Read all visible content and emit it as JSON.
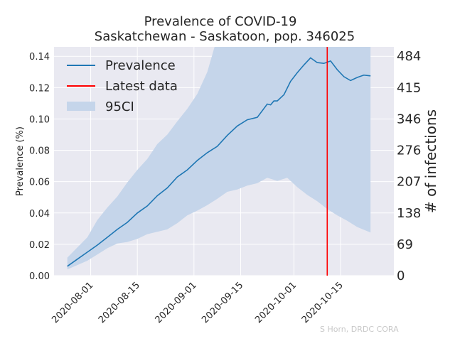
{
  "chart_data": {
    "type": "line",
    "title_line1": "Prevalence of COVID-19",
    "title_line2": "Saskatchewan - Saskatoon, pop. 346025",
    "ylabel": "Prevalence (%)",
    "ylabel_right": "# of infections",
    "xlabel": "",
    "x_range": [
      "2020-07-21",
      "2020-10-31"
    ],
    "ylim": [
      0,
      0.146
    ],
    "yticks": [
      0.0,
      0.02,
      0.04,
      0.06,
      0.08,
      0.1,
      0.12,
      0.14
    ],
    "ytick_labels": [
      "0.00",
      "0.02",
      "0.04",
      "0.06",
      "0.08",
      "0.10",
      "0.12",
      "0.14"
    ],
    "right_yticks": [
      0,
      69,
      138,
      207,
      276,
      346,
      415,
      484
    ],
    "xticks": [
      "2020-08-01",
      "2020-08-15",
      "2020-09-01",
      "2020-09-15",
      "2020-10-01",
      "2020-10-15"
    ],
    "grid": true,
    "legend_position": "upper-left",
    "latest_data_date": "2020-10-11",
    "series": [
      {
        "name": "Prevalence",
        "color": "#1f77b4",
        "dates": [
          "2020-07-25",
          "2020-07-28",
          "2020-07-31",
          "2020-08-03",
          "2020-08-06",
          "2020-08-09",
          "2020-08-12",
          "2020-08-15",
          "2020-08-18",
          "2020-08-21",
          "2020-08-24",
          "2020-08-27",
          "2020-08-30",
          "2020-09-02",
          "2020-09-05",
          "2020-09-08",
          "2020-09-11",
          "2020-09-14",
          "2020-09-17",
          "2020-09-20",
          "2020-09-23",
          "2020-09-24",
          "2020-09-25",
          "2020-09-26",
          "2020-09-28",
          "2020-09-30",
          "2020-10-02",
          "2020-10-04",
          "2020-10-06",
          "2020-10-08",
          "2020-10-10",
          "2020-10-12",
          "2020-10-14",
          "2020-10-16",
          "2020-10-18",
          "2020-10-20",
          "2020-10-22",
          "2020-10-24"
        ],
        "values": [
          0.006,
          0.0105,
          0.015,
          0.0195,
          0.0245,
          0.0295,
          0.034,
          0.04,
          0.0445,
          0.051,
          0.056,
          0.063,
          0.0675,
          0.0735,
          0.0785,
          0.0825,
          0.0895,
          0.0955,
          0.0995,
          0.101,
          0.1095,
          0.109,
          0.1115,
          0.1115,
          0.1155,
          0.124,
          0.1295,
          0.1345,
          0.139,
          0.136,
          0.1355,
          0.137,
          0.1315,
          0.127,
          0.1245,
          0.1265,
          0.128,
          0.1275
        ]
      },
      {
        "name": "95CI",
        "color": "#c5d5ea",
        "dates": [
          "2020-07-25",
          "2020-07-31",
          "2020-08-03",
          "2020-08-06",
          "2020-08-09",
          "2020-08-12",
          "2020-08-15",
          "2020-08-18",
          "2020-08-21",
          "2020-08-24",
          "2020-08-27",
          "2020-08-30",
          "2020-09-02",
          "2020-09-05",
          "2020-09-08",
          "2020-09-11",
          "2020-09-14",
          "2020-09-17",
          "2020-09-20",
          "2020-09-23",
          "2020-09-26",
          "2020-09-29",
          "2020-10-02",
          "2020-10-05",
          "2020-10-08",
          "2020-10-11",
          "2020-10-14",
          "2020-10-17",
          "2020-10-20",
          "2020-10-24"
        ],
        "lower": [
          0.004,
          0.0095,
          0.0135,
          0.0175,
          0.0205,
          0.0215,
          0.0235,
          0.0265,
          0.028,
          0.0295,
          0.0335,
          0.0385,
          0.0415,
          0.045,
          0.049,
          0.0535,
          0.055,
          0.0575,
          0.059,
          0.0625,
          0.0605,
          0.0625,
          0.0565,
          0.0515,
          0.0475,
          0.0425,
          0.0385,
          0.035,
          0.031,
          0.0275
        ],
        "upper": [
          0.0115,
          0.0245,
          0.0355,
          0.0435,
          0.0505,
          0.0595,
          0.0675,
          0.0745,
          0.084,
          0.09,
          0.0985,
          0.1065,
          0.116,
          0.13,
          0.152,
          0.152,
          0.152,
          0.152,
          0.152,
          0.152,
          0.152,
          0.152,
          0.152,
          0.152,
          0.152,
          0.152,
          0.152,
          0.152,
          0.152,
          0.152
        ]
      },
      {
        "name": "Latest data",
        "color": "#ff0000"
      }
    ],
    "credit": "S Horn, DRDC CORA"
  }
}
